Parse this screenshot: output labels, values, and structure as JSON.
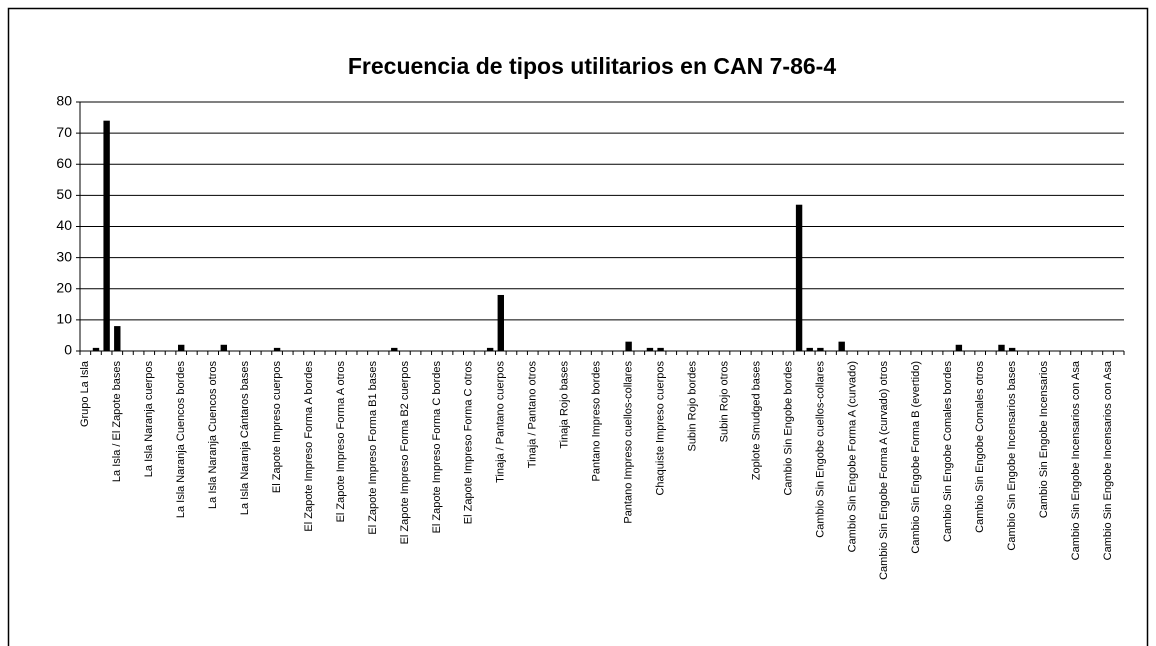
{
  "chart_data": {
    "type": "bar",
    "title": "Frecuencia de tipos utilitarios en CAN 7-86-4",
    "categories": [
      "Grupo La Isla",
      null,
      null,
      "La Isla / El Zapote bases",
      null,
      null,
      "La Isla Naranja cuerpos",
      null,
      null,
      "La Isla Naranja Cuencos bordes",
      null,
      null,
      "La Isla Naranja Cuencos otros",
      null,
      null,
      "La Isla Naranja Cántaros bases",
      null,
      null,
      "El Zapote Impreso cuerpos",
      null,
      null,
      "El Zapote Impreso Forma A bordes",
      null,
      null,
      "El Zapote Impreso Forma A otros",
      null,
      null,
      "El Zapote Impreso Forma B1 bases",
      null,
      null,
      "El Zapote Impreso Forma B2 cuerpos",
      null,
      null,
      "El Zapote Impreso Forma C bordes",
      null,
      null,
      "El Zapote Impreso Forma C otros",
      null,
      null,
      "Tinaja / Pantano cuerpos",
      null,
      null,
      "Tinaja / Pantano otros",
      null,
      null,
      "Tinaja Rojo bases",
      null,
      null,
      "Pantano Impreso bordes",
      null,
      null,
      "Pantano Impreso cuellos-collares",
      null,
      null,
      "Chaquiste Impreso cuerpos",
      null,
      null,
      "Subin Rojo bordes",
      null,
      null,
      "Subin Rojo otros",
      null,
      null,
      "Zoplote Smudged bases",
      null,
      null,
      "Cambio Sin Engobe bordes",
      null,
      null,
      "Cambio Sin Engobe cuellos-collares",
      null,
      null,
      "Cambio Sin Engobe Forma A (curvado)",
      null,
      null,
      "Cambio Sin Engobe Forma A (curvado) otros",
      null,
      null,
      "Cambio Sin Engobe Forma B (evertido)",
      null,
      null,
      "Cambio Sin Engobe Comales bordes",
      null,
      null,
      "Cambio Sin Engobe Comales otros",
      null,
      null,
      "Cambio Sin Engobe Incensarios bases",
      null,
      null,
      "Cambio Sin Engobe Incensarios",
      null,
      null,
      "Cambio Sin Engobe Incensarios con Asa",
      null,
      null,
      "Cambio Sin Engobe Incensarios con Asa",
      null
    ],
    "values": [
      0,
      1,
      74,
      8,
      0,
      0,
      0,
      0,
      0,
      2,
      0,
      0,
      0,
      2,
      0,
      0,
      0,
      0,
      1,
      0,
      0,
      0,
      0,
      0,
      0,
      0,
      0,
      0,
      0,
      1,
      0,
      0,
      0,
      0,
      0,
      0,
      0,
      0,
      1,
      18,
      0,
      0,
      0,
      0,
      0,
      0,
      0,
      0,
      0,
      0,
      0,
      3,
      0,
      1,
      1,
      0,
      0,
      0,
      0,
      0,
      0,
      0,
      0,
      0,
      0,
      0,
      0,
      47,
      1,
      1,
      0,
      3,
      0,
      0,
      0,
      0,
      0,
      0,
      0,
      0,
      0,
      0,
      2,
      0,
      0,
      0,
      2,
      1,
      0,
      0,
      0,
      0,
      0,
      0,
      0,
      0,
      0,
      0
    ],
    "color": "#000000",
    "ylim": [
      0,
      80
    ],
    "yticks": [
      0,
      10,
      20,
      30,
      40,
      50,
      60,
      70,
      80
    ],
    "grid": true
  }
}
